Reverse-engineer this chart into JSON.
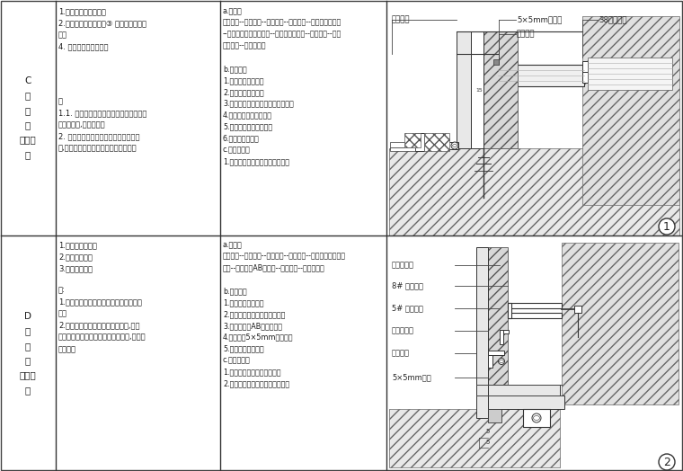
{
  "bg_color": "#ffffff",
  "border_color": "#555555",
  "text_color": "#1a1a1a",
  "fig_width": 7.6,
  "fig_height": 5.24,
  "section_C_label": "C\n石\n材\n与\n硬包相\n接",
  "section_D_label": "D\n石\n材\n与\n石材相\n接",
  "col1_title_C": "1.石材背景与硬包背景\n2.石材线条与墙面硬包③ 石材台面与墙面\n硬包\n4. 石材踢脚与墙面硬包",
  "col1_notes_C": "注\n1.1. 由于其材质特殊在施工时要过渡工序\n，材料保护,成品保护。\n2. 由于硬包在可变性质以适型，样式不\n一,对此一定要注意选型规格与材料尺。",
  "col2_text_C": "a.施工序\n准备工作--现场放线--材料加工--基层处理--轻钢龙骨墙制作\n--基层龙骨，基层帽固定--石材专用胶粘结--铺陈石材--成品\n硬包安装--完成面处理\n\nb.用料分析\n1.轻钢龙骨墙体材料\n2.选用磨光石材加工\n3.硬包基层固定、其他材料轻钢龙骨\n4.用石材专用胶固定安装\n5.硬包基层需做三防处理\n6.石材露六面防护\nc.完成面处理\n1.用金丝楠专用保护膜做成品保护",
  "col1_title_D": "1.村墙面转角拼接\n2.石材线条拼接\n3.石材台面与墙",
  "col1_notes_D": "注:\n1.石材与石材拼装需根据拼接有三种侧面\n方法\n2.石材与石材拼接着在一个平面上,露截\n面时、侧角、倒设、或采用嵌口条等,不建议\n直接对接",
  "col2_text_D": "a.施工序\n准备工作--现场放线--材料加工--基层处理--石材干挂结构搭架\n固定--石材专用AB胶粘结--铺陈石材--完成面处理\n\nb.用料分析\n1.石材专用干挂配件\n2.选用指定石材加工，固定框架\n3.用石材专用AB胶固定安装\n4.安装时做5×5mm斜缝间距\n5.石材露藏六面防护\nc.完成面处理\n1.周专用围墙遮封横缝、骨冶\n2.用金丝楠专用保护膜做成品保护",
  "diag1_stone_label": "石材饰面",
  "diag1_groove_label": "5×5mm工艺缝",
  "diag1_wrap_label": "墙面硬包",
  "diag1_stud_label": "38罗心龙骨",
  "diag2_wall_label": "原装装墙体",
  "diag2_channel_label": "8# 镀锌槽钢",
  "diag2_angle_label": "5# 镀锌角铁",
  "diag2_hanger_label": "石材干挂件",
  "diag2_stone_label": "石材饰面",
  "diag2_corner_label": "5×5mm侧角",
  "circle_num1": "1",
  "circle_num2": "2"
}
